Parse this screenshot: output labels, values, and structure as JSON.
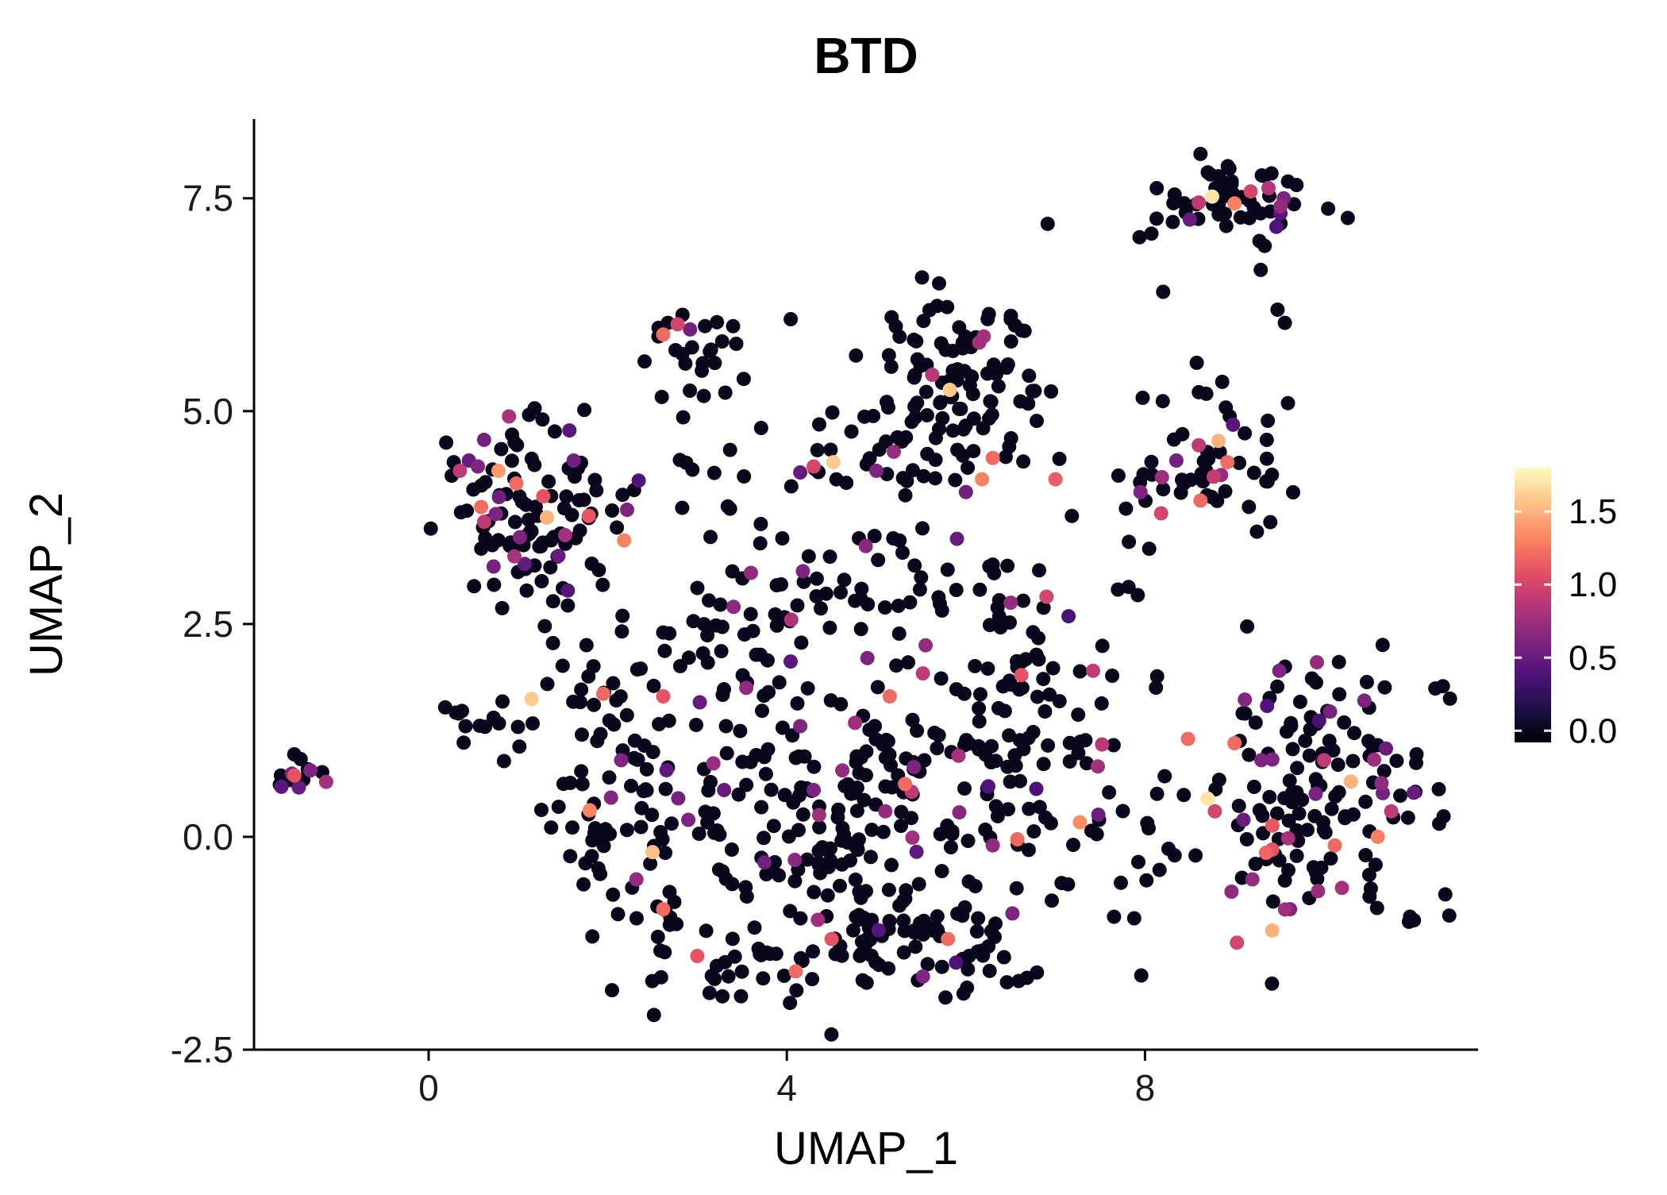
{
  "chart_data": {
    "type": "scatter",
    "title": "BTD",
    "xlabel": "UMAP_1",
    "ylabel": "UMAP_2",
    "xlim": [
      -1.95,
      11.72
    ],
    "ylim": [
      -2.5,
      8.43
    ],
    "grid": false,
    "background": "#FFFFFF",
    "axis_color": "#000000",
    "point_radius": 9,
    "seed": 42,
    "xticks": {
      "values": [
        0,
        4,
        8
      ],
      "labels": [
        "0",
        "4",
        "8"
      ]
    },
    "yticks": {
      "values": [
        -2.5,
        0,
        2.5,
        5,
        7.5
      ],
      "labels": [
        "-2.5",
        "0.0",
        "2.5",
        "5.0",
        "7.5"
      ]
    },
    "colorbar": {
      "vmin": -0.08,
      "vmax": 1.8,
      "ticks": {
        "values": [
          0,
          0.5,
          1,
          1.5
        ],
        "labels": [
          "0.0",
          "0.5",
          "1.0",
          "1.5"
        ]
      },
      "stops": [
        [
          0,
          "#000004"
        ],
        [
          0.125,
          "#1D1147"
        ],
        [
          0.25,
          "#51127C"
        ],
        [
          0.375,
          "#822681"
        ],
        [
          0.5,
          "#B63679"
        ],
        [
          0.625,
          "#E65164"
        ],
        [
          0.75,
          "#FB8861"
        ],
        [
          0.875,
          "#FEC287"
        ],
        [
          1,
          "#FCFDBF"
        ]
      ]
    },
    "clusters": [
      {
        "name": "top-right",
        "cx": 9.05,
        "cy": 7.5,
        "sx": 0.5,
        "sy": 0.26,
        "n": 50,
        "p_mid": 0.04,
        "p_high": 0
      },
      {
        "name": "top-right-tail",
        "cx": 9.2,
        "cy": 6.85,
        "sx": 0.3,
        "sy": 0.4,
        "n": 6,
        "p_mid": 0,
        "p_high": 0
      },
      {
        "name": "top-mid-small",
        "cx": 2.9,
        "cy": 5.8,
        "sx": 0.32,
        "sy": 0.3,
        "n": 20,
        "p_mid": 0.05,
        "p_high": 0
      },
      {
        "name": "top-mid-small-tail",
        "cx": 2.8,
        "cy": 5.15,
        "sx": 0.3,
        "sy": 0.12,
        "n": 5,
        "p_mid": 0,
        "p_high": 0
      },
      {
        "name": "top-center",
        "cx": 6.0,
        "cy": 5.4,
        "sx": 0.5,
        "sy": 0.42,
        "n": 85,
        "p_mid": 0.03,
        "p_high": 0.01
      },
      {
        "name": "top-center-lower",
        "cx": 5.7,
        "cy": 4.55,
        "sx": 0.75,
        "sy": 0.3,
        "n": 25,
        "p_mid": 0.05,
        "p_high": 0
      },
      {
        "name": "right-upper",
        "cx": 8.7,
        "cy": 4.3,
        "sx": 0.42,
        "sy": 0.34,
        "n": 40,
        "p_mid": 0.08,
        "p_high": 0.03
      },
      {
        "name": "left-upper",
        "cx": 1.1,
        "cy": 3.8,
        "sx": 0.52,
        "sy": 0.58,
        "n": 105,
        "p_mid": 0.08,
        "p_high": 0.02
      },
      {
        "name": "far-left",
        "cx": -1.5,
        "cy": 0.7,
        "sx": 0.18,
        "sy": 0.11,
        "n": 14,
        "p_mid": 0.1,
        "p_high": 0
      },
      {
        "name": "left-small",
        "cx": 0.55,
        "cy": 1.32,
        "sx": 0.3,
        "sy": 0.15,
        "n": 13,
        "p_mid": 0,
        "p_high": 0
      },
      {
        "name": "center-left-arm",
        "cx": 2.2,
        "cy": 0.4,
        "sx": 0.5,
        "sy": 0.85,
        "n": 80,
        "p_mid": 0.06,
        "p_high": 0.01
      },
      {
        "name": "center-main",
        "cx": 4.6,
        "cy": 0.35,
        "sx": 1.05,
        "sy": 0.85,
        "n": 200,
        "p_mid": 0.05,
        "p_high": 0.01
      },
      {
        "name": "center-bottom",
        "cx": 5.5,
        "cy": -1.35,
        "sx": 0.8,
        "sy": 0.35,
        "n": 70,
        "p_mid": 0.04,
        "p_high": 0.01
      },
      {
        "name": "center-bottom-left",
        "cx": 3.2,
        "cy": -1.45,
        "sx": 0.55,
        "sy": 0.35,
        "n": 25,
        "p_mid": 0.04,
        "p_high": 0
      },
      {
        "name": "center-right",
        "cx": 6.5,
        "cy": 1.55,
        "sx": 0.62,
        "sy": 0.7,
        "n": 80,
        "p_mid": 0.06,
        "p_high": 0.01
      },
      {
        "name": "center-top-arc",
        "cx": 5.1,
        "cy": 3.0,
        "sx": 1.0,
        "sy": 0.45,
        "n": 45,
        "p_mid": 0.05,
        "p_high": 0
      },
      {
        "name": "center-upper-left",
        "cx": 3.4,
        "cy": 2.3,
        "sx": 0.5,
        "sy": 0.55,
        "n": 40,
        "p_mid": 0.06,
        "p_high": 0
      },
      {
        "name": "left-mid-bridge",
        "cx": 1.9,
        "cy": 1.85,
        "sx": 0.35,
        "sy": 0.4,
        "n": 18,
        "p_mid": 0.05,
        "p_high": 0
      },
      {
        "name": "center-right-bridge",
        "cx": 7.35,
        "cy": -0.2,
        "sx": 0.35,
        "sy": 0.6,
        "n": 14,
        "p_mid": 0.05,
        "p_high": 0
      },
      {
        "name": "bottom-right",
        "cx": 9.8,
        "cy": 0.45,
        "sx": 0.8,
        "sy": 0.85,
        "n": 155,
        "p_mid": 0.1,
        "p_high": 0.02
      },
      {
        "name": "mid-pair-region",
        "cx": 4.4,
        "cy": 4.3,
        "sx": 0.3,
        "sy": 0.18,
        "n": 8,
        "p_mid": 0,
        "p_high": 0
      },
      {
        "name": "upper-bridge",
        "cx": 3.1,
        "cy": 4.25,
        "sx": 0.45,
        "sy": 0.3,
        "n": 10,
        "p_mid": 0.05,
        "p_high": 0
      },
      {
        "name": "right-bridge",
        "cx": 7.7,
        "cy": 3.3,
        "sx": 0.4,
        "sy": 0.4,
        "n": 8,
        "p_mid": 0.05,
        "p_high": 0
      },
      {
        "name": "right-upper-scatter",
        "cx": 8.9,
        "cy": 5.2,
        "sx": 0.45,
        "sy": 0.3,
        "n": 6,
        "p_mid": 0,
        "p_high": 0
      },
      {
        "name": "sparse-top",
        "cx": 4.6,
        "cy": 5.3,
        "sx": 0.8,
        "sy": 0.4,
        "n": 8,
        "p_mid": 0,
        "p_high": 0
      },
      {
        "name": "misc-singles",
        "cx": 7.0,
        "cy": 6.0,
        "sx": 1.2,
        "sy": 0.6,
        "n": 5,
        "p_mid": 0,
        "p_high": 0
      }
    ],
    "highlights": [
      [
        8.6,
        7.45,
        0.9
      ],
      [
        8.75,
        7.52,
        1.7
      ],
      [
        9.0,
        7.44,
        1.3
      ],
      [
        9.18,
        7.58,
        1.0
      ],
      [
        9.38,
        7.62,
        0.85
      ],
      [
        8.5,
        7.25,
        0.5
      ],
      [
        9.55,
        7.5,
        0.6
      ],
      [
        2.62,
        5.9,
        1.2
      ],
      [
        2.78,
        6.02,
        1.0
      ],
      [
        2.92,
        5.96,
        0.55
      ],
      [
        5.82,
        5.25,
        1.6
      ],
      [
        6.3,
        4.45,
        1.2
      ],
      [
        6.18,
        4.2,
        1.3
      ],
      [
        7.0,
        4.2,
        1.15
      ],
      [
        6.0,
        4.05,
        0.55
      ],
      [
        8.82,
        4.65,
        1.5
      ],
      [
        8.92,
        4.4,
        1.2
      ],
      [
        8.62,
        3.95,
        1.2
      ],
      [
        7.95,
        4.05,
        0.6
      ],
      [
        8.18,
        3.8,
        1.0
      ],
      [
        8.85,
        4.25,
        0.7
      ],
      [
        8.35,
        4.42,
        0.55
      ],
      [
        8.6,
        4.6,
        0.9
      ],
      [
        0.55,
        4.35,
        0.6
      ],
      [
        0.78,
        4.3,
        1.4
      ],
      [
        0.98,
        4.15,
        1.2
      ],
      [
        1.28,
        4.0,
        1.1
      ],
      [
        1.32,
        3.75,
        1.5
      ],
      [
        0.62,
        3.7,
        0.9
      ],
      [
        1.02,
        3.52,
        0.6
      ],
      [
        1.62,
        4.42,
        0.55
      ],
      [
        0.45,
        4.42,
        0.5
      ],
      [
        1.45,
        3.3,
        0.5
      ],
      [
        0.35,
        4.3,
        0.9
      ],
      [
        4.3,
        4.35,
        1.0
      ],
      [
        4.52,
        4.4,
        1.6
      ],
      [
        4.15,
        4.28,
        0.5
      ],
      [
        5.0,
        4.3,
        0.6
      ],
      [
        -1.5,
        0.72,
        1.1
      ],
      [
        -1.32,
        0.78,
        0.6
      ],
      [
        -1.45,
        0.58,
        0.5
      ],
      [
        1.15,
        1.62,
        1.6
      ],
      [
        1.95,
        1.68,
        1.2
      ],
      [
        2.5,
        -0.18,
        1.55
      ],
      [
        2.62,
        1.65,
        1.1
      ],
      [
        2.15,
        0.9,
        0.6
      ],
      [
        2.32,
        -0.5,
        0.7
      ],
      [
        2.62,
        -0.85,
        1.2
      ],
      [
        3.0,
        -1.4,
        1.1
      ],
      [
        4.1,
        -1.58,
        1.2
      ],
      [
        4.3,
        0.55,
        0.6
      ],
      [
        4.62,
        0.78,
        0.7
      ],
      [
        5.1,
        0.3,
        0.7
      ],
      [
        5.32,
        0.62,
        1.2
      ],
      [
        5.42,
        0.82,
        0.6
      ],
      [
        5.15,
        1.65,
        1.2
      ],
      [
        5.52,
        1.92,
        0.9
      ],
      [
        4.9,
        2.1,
        0.6
      ],
      [
        5.55,
        2.25,
        0.7
      ],
      [
        6.5,
        2.75,
        0.7
      ],
      [
        6.9,
        2.82,
        1.0
      ],
      [
        6.62,
        1.9,
        1.1
      ],
      [
        7.42,
        1.95,
        0.9
      ],
      [
        6.3,
        -0.1,
        0.7
      ],
      [
        6.52,
        -0.9,
        0.6
      ],
      [
        5.8,
        -1.2,
        1.2
      ],
      [
        4.5,
        -1.2,
        1.1
      ],
      [
        4.05,
        2.55,
        0.8
      ],
      [
        3.6,
        3.1,
        0.7
      ],
      [
        4.18,
        3.12,
        0.6
      ],
      [
        5.9,
        3.5,
        0.5
      ],
      [
        4.15,
        1.3,
        0.6
      ],
      [
        3.3,
        0.55,
        0.5
      ],
      [
        3.75,
        -0.3,
        0.55
      ],
      [
        2.9,
        0.2,
        0.6
      ],
      [
        8.7,
        0.45,
        1.7
      ],
      [
        8.78,
        0.3,
        1.0
      ],
      [
        9.0,
        1.1,
        1.2
      ],
      [
        9.3,
        0.9,
        0.6
      ],
      [
        9.5,
        1.95,
        0.6
      ],
      [
        9.92,
        2.05,
        0.7
      ],
      [
        10.3,
        0.65,
        1.5
      ],
      [
        10.6,
        0.0,
        1.3
      ],
      [
        10.12,
        -0.1,
        1.2
      ],
      [
        9.42,
        -0.15,
        1.1
      ],
      [
        9.2,
        -0.5,
        0.7
      ],
      [
        9.42,
        -1.1,
        1.5
      ],
      [
        9.62,
        -0.85,
        0.6
      ],
      [
        10.2,
        -0.6,
        0.8
      ],
      [
        10.0,
        0.9,
        0.9
      ],
      [
        9.1,
        0.2,
        0.5
      ],
      [
        8.48,
        1.15,
        1.2
      ],
      [
        10.45,
        1.6,
        0.6
      ],
      [
        10.75,
        0.3,
        0.9
      ]
    ]
  }
}
